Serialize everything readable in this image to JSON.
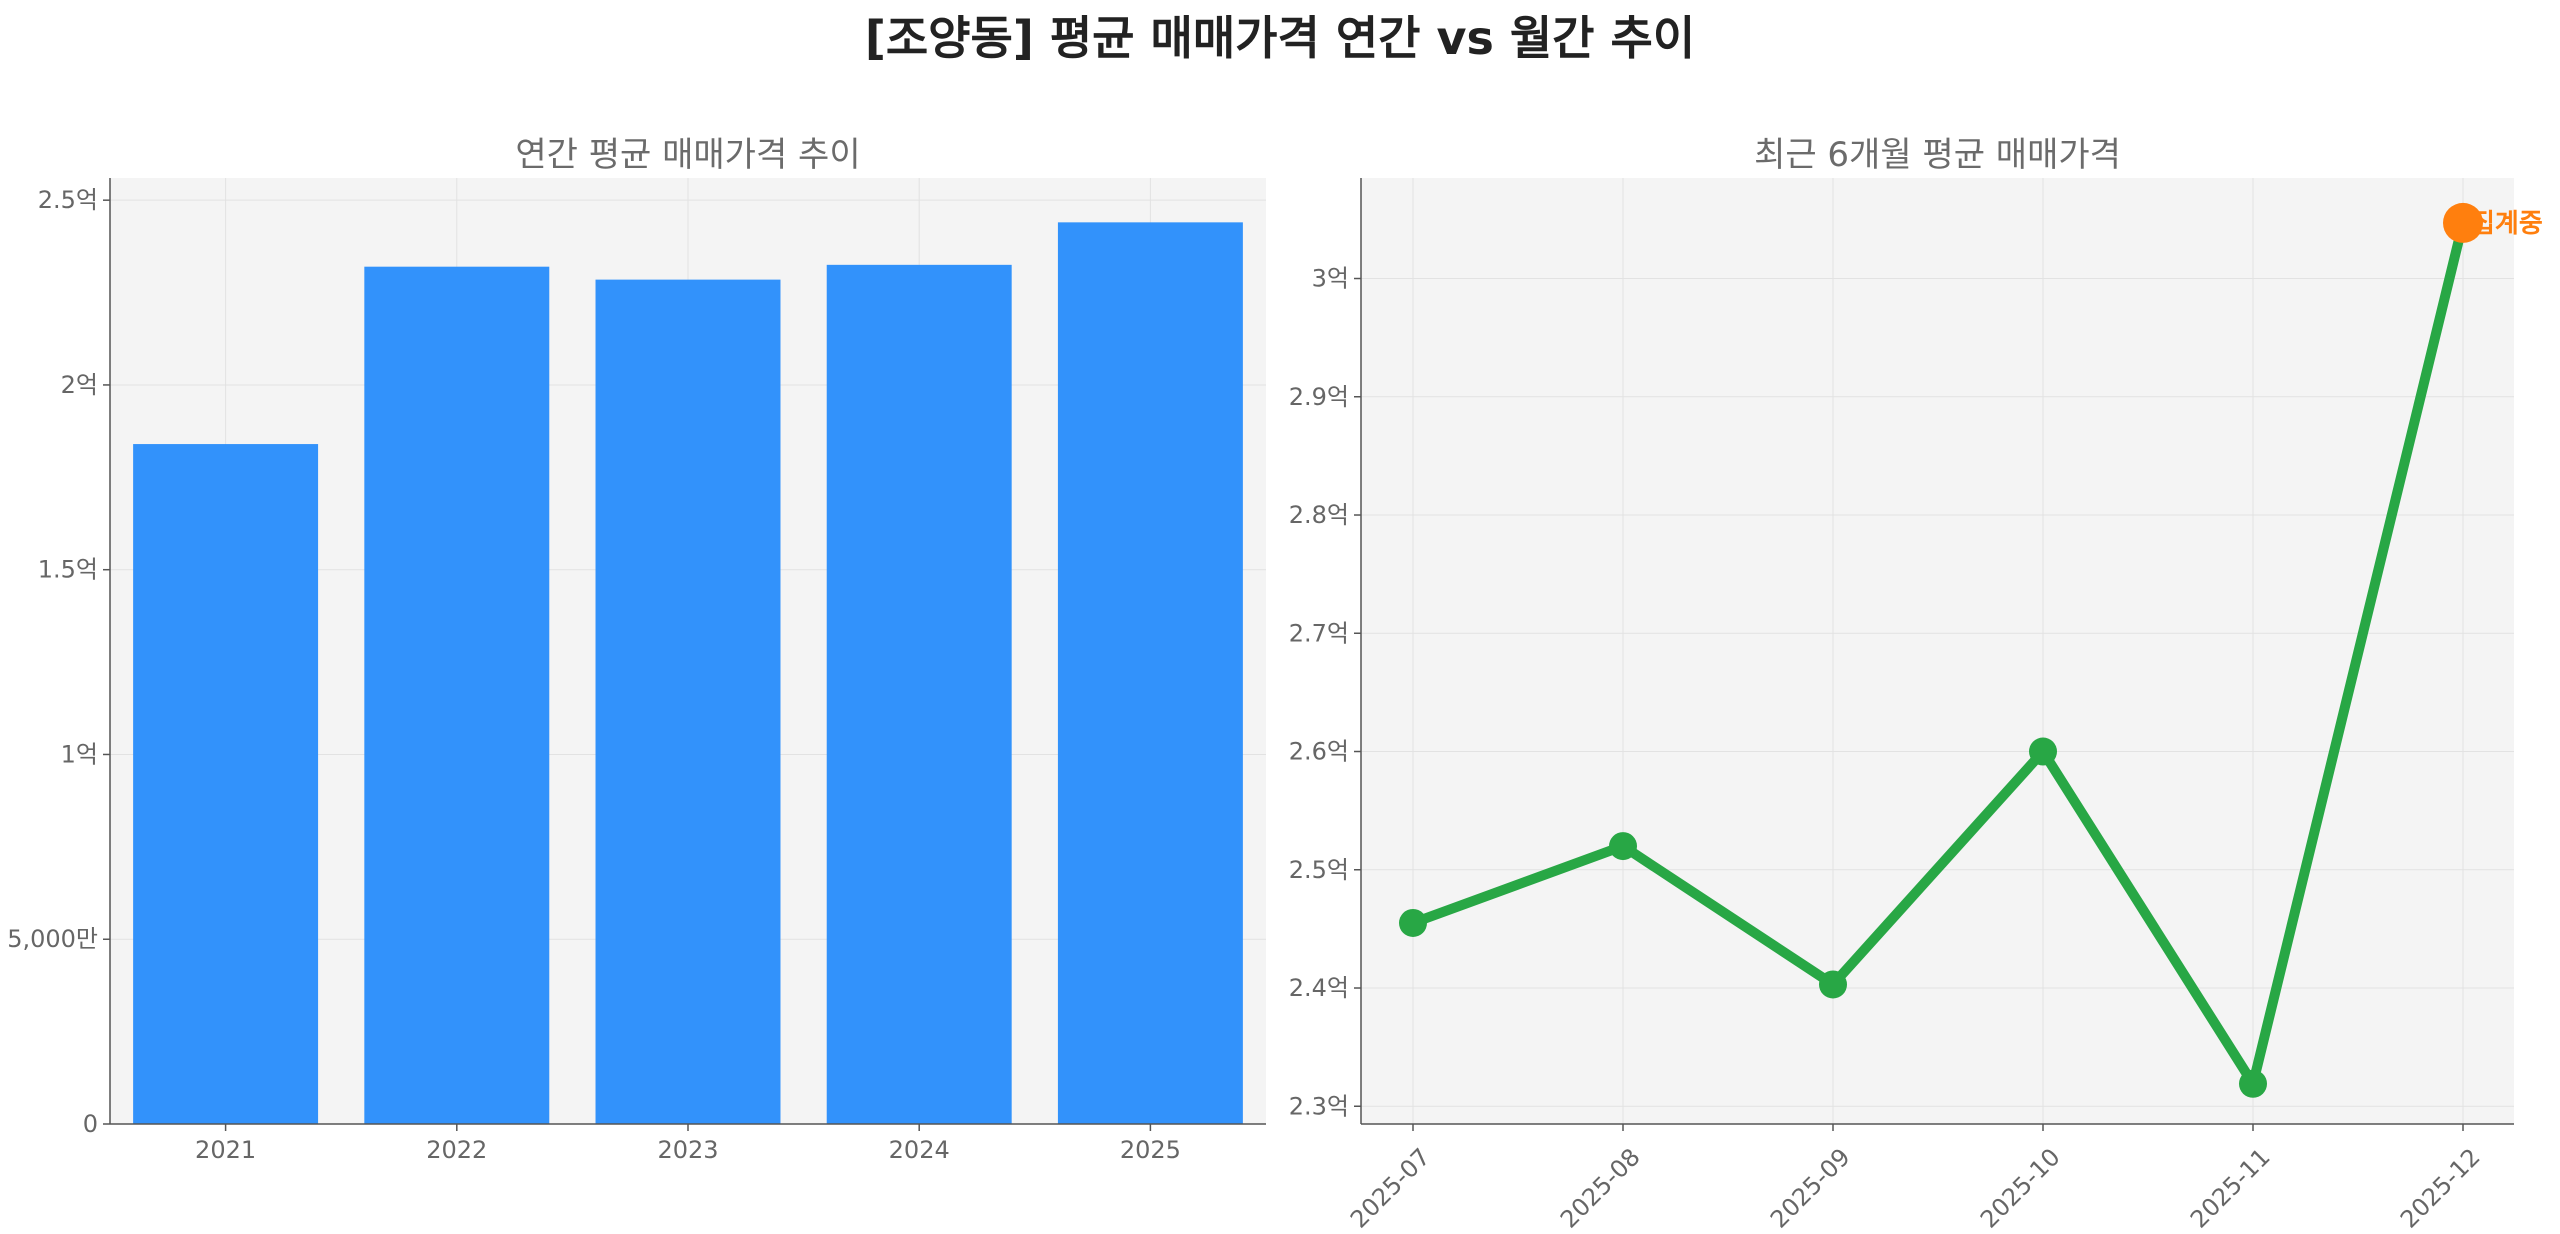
{
  "title": "[조양동] 평균 매매가격 연간 vs 월간 추이",
  "colors": {
    "bar": "#3292fb",
    "line": "#28a745",
    "highlight": "#ff7f0e",
    "plot_bg": "#f4f4f4",
    "grid": "#e2e2e2",
    "axis": "#555555"
  },
  "chart_data": [
    {
      "type": "bar",
      "title": "연간 평균 매매가격 추이",
      "categories": [
        "2021",
        "2022",
        "2023",
        "2024",
        "2025"
      ],
      "values": [
        184000000,
        232000000,
        228500000,
        232500000,
        244000000
      ],
      "ylim": [
        0,
        256000000
      ],
      "yticks": [
        0,
        50000000,
        100000000,
        150000000,
        200000000,
        250000000
      ],
      "ytick_labels": [
        "0",
        "5,000만",
        "1억",
        "1.5억",
        "2억",
        "2.5억"
      ],
      "xlabel": "",
      "ylabel": "",
      "grid": true
    },
    {
      "type": "line",
      "title": "최근 6개월 평균 매매가격",
      "categories": [
        "2025-07",
        "2025-08",
        "2025-09",
        "2025-10",
        "2025-11",
        "2025-12"
      ],
      "values": [
        245500000,
        252000000,
        240300000,
        260000000,
        231900000,
        304700000
      ],
      "ylim": [
        228500000,
        308500000
      ],
      "yticks": [
        230000000,
        240000000,
        250000000,
        260000000,
        270000000,
        280000000,
        290000000,
        300000000
      ],
      "ytick_labels": [
        "2.3억",
        "2.4억",
        "2.5억",
        "2.6억",
        "2.7억",
        "2.8억",
        "2.9억",
        "3억"
      ],
      "highlight_index": 5,
      "annotation": "집계중",
      "xlabel": "",
      "ylabel": "",
      "grid": true
    }
  ]
}
